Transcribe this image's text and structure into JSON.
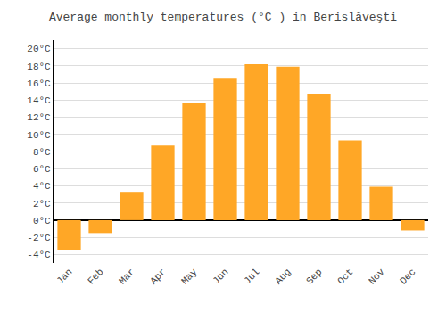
{
  "chart_data": {
    "type": "bar",
    "title": "Average monthly temperatures (°C ) in Berislăveşti",
    "categories": [
      "Jan",
      "Feb",
      "Mar",
      "Apr",
      "May",
      "Jun",
      "Jul",
      "Aug",
      "Sep",
      "Oct",
      "Nov",
      "Dec"
    ],
    "values": [
      -3.5,
      -1.5,
      3.3,
      8.7,
      13.7,
      16.5,
      18.2,
      17.9,
      14.7,
      9.3,
      3.9,
      -1.2
    ],
    "color": "#FFA726",
    "ylim": [
      -5,
      21
    ],
    "yticks": [
      {
        "value": -4,
        "label": "-4°C"
      },
      {
        "value": -2,
        "label": "-2°C"
      },
      {
        "value": 0,
        "label": "0°C"
      },
      {
        "value": 2,
        "label": "2°C"
      },
      {
        "value": 4,
        "label": "4°C"
      },
      {
        "value": 6,
        "label": "6°C"
      },
      {
        "value": 8,
        "label": "8°C"
      },
      {
        "value": 10,
        "label": "10°C"
      },
      {
        "value": 12,
        "label": "12°C"
      },
      {
        "value": 14,
        "label": "14°C"
      },
      {
        "value": 16,
        "label": "16°C"
      },
      {
        "value": 18,
        "label": "18°C"
      },
      {
        "value": 20,
        "label": "20°C"
      }
    ],
    "grid": true
  }
}
